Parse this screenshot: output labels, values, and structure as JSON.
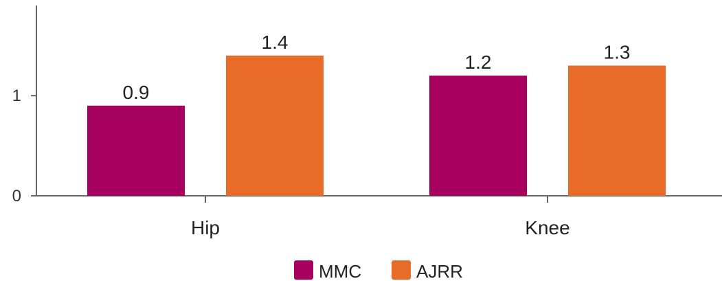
{
  "chart_data": {
    "type": "bar",
    "categories": [
      "Hip",
      "Knee"
    ],
    "series": [
      {
        "name": "MMC",
        "color": "#A8005E",
        "values": [
          0.9,
          1.2
        ],
        "labels": [
          "0.9",
          "1.2"
        ]
      },
      {
        "name": "AJRR",
        "color": "#E86B27",
        "values": [
          1.4,
          1.3
        ],
        "labels": [
          "1.4",
          "1.3"
        ]
      }
    ],
    "yticks": [
      0,
      1
    ],
    "ytick_labels": [
      "0",
      "1"
    ],
    "ylim": [
      0,
      1.9
    ],
    "grid": false,
    "legend_position": "bottom-center"
  }
}
